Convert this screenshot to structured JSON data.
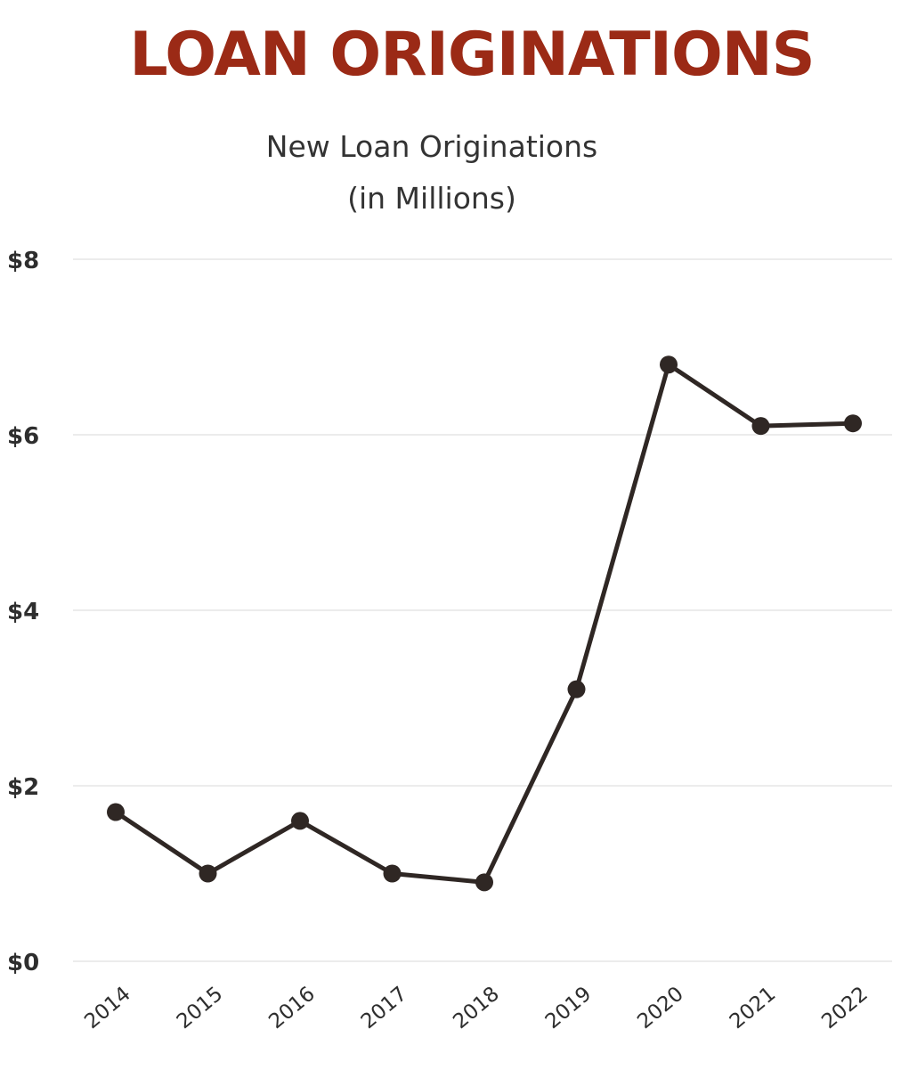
{
  "chart_data": {
    "type": "line",
    "title": "LOAN ORIGINATIONS",
    "subtitle": "New Loan Originations\n(in Millions)",
    "categories": [
      "2014",
      "2015",
      "2016",
      "2017",
      "2018",
      "2019",
      "2020",
      "2021",
      "2022"
    ],
    "series": [
      {
        "values": [
          1.7,
          1.0,
          1.6,
          1.0,
          0.9,
          3.1,
          6.8,
          6.1,
          6.13
        ]
      }
    ],
    "ylim": [
      0,
      8
    ],
    "yticks": [
      0,
      2,
      4,
      6,
      8
    ],
    "ytick_labels": [
      "$0",
      "$2",
      "$4",
      "$6",
      "$8"
    ],
    "grid": true,
    "colors": {
      "title": "#9b2a16",
      "line": "#2f2724",
      "grid": "#ececec"
    }
  }
}
